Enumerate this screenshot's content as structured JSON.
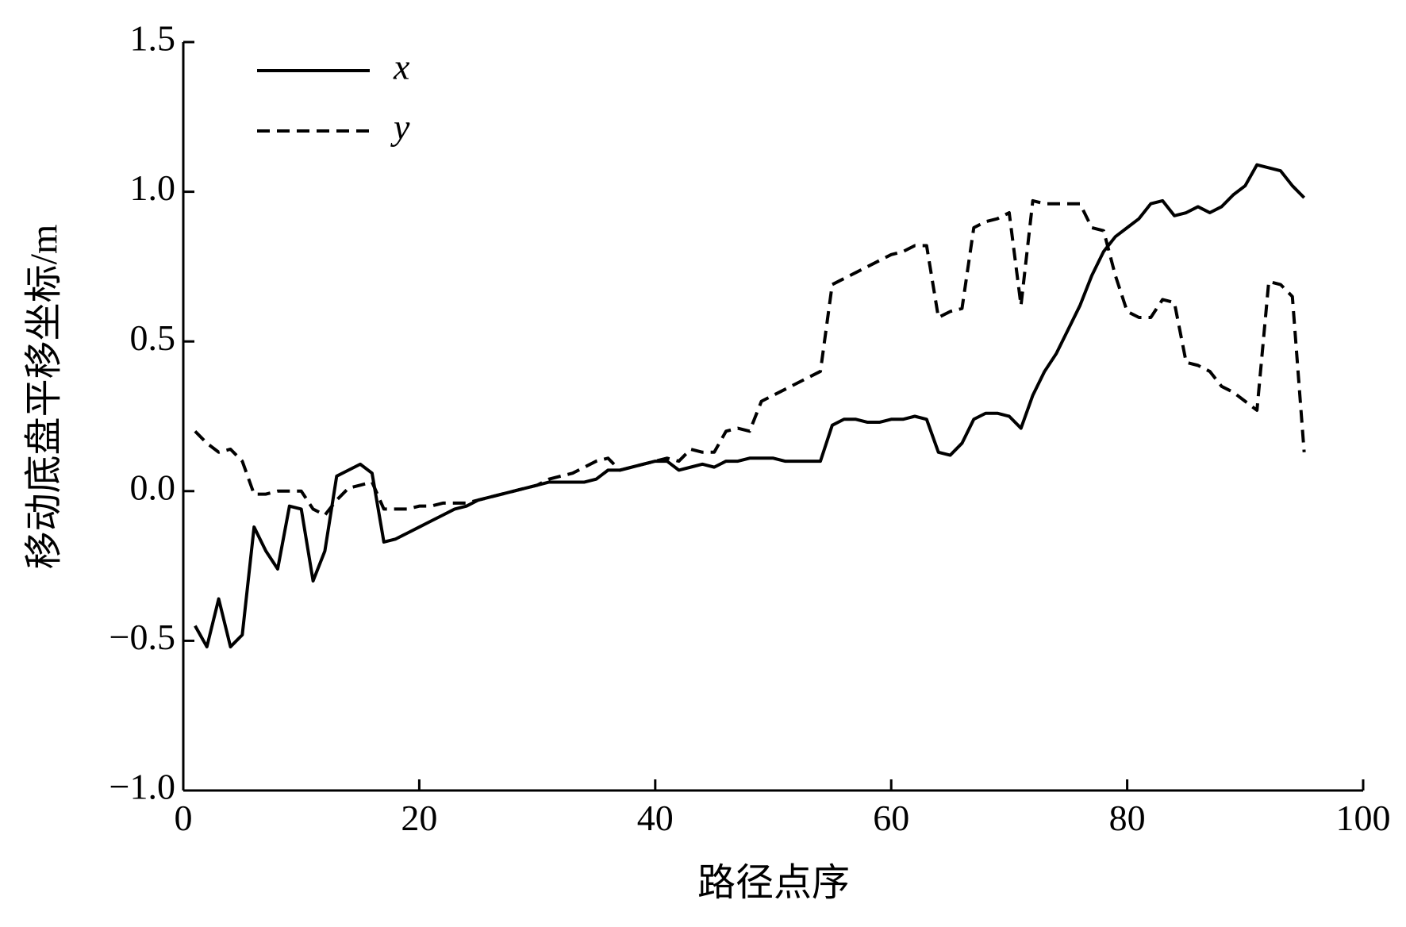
{
  "chart_data": {
    "type": "line",
    "xlabel": "路径点序",
    "ylabel": "移动底盘平移坐标/m",
    "x": [
      1,
      2,
      3,
      4,
      5,
      6,
      7,
      8,
      9,
      10,
      11,
      12,
      13,
      14,
      15,
      16,
      17,
      18,
      19,
      20,
      21,
      22,
      23,
      24,
      25,
      26,
      27,
      28,
      29,
      30,
      31,
      32,
      33,
      34,
      35,
      36,
      37,
      38,
      39,
      40,
      41,
      42,
      43,
      44,
      45,
      46,
      47,
      48,
      49,
      50,
      51,
      52,
      53,
      54,
      55,
      56,
      57,
      58,
      59,
      60,
      61,
      62,
      63,
      64,
      65,
      66,
      67,
      68,
      69,
      70,
      71,
      72,
      73,
      74,
      75,
      76,
      77,
      78,
      79,
      80,
      81,
      82,
      83,
      84,
      85,
      86,
      87,
      88,
      89,
      90,
      91,
      92,
      93,
      94,
      95
    ],
    "series": [
      {
        "name": "x",
        "color": "#000000",
        "linestyle": "solid",
        "values": [
          -0.45,
          -0.52,
          -0.36,
          -0.52,
          -0.48,
          -0.12,
          -0.2,
          -0.26,
          -0.05,
          -0.06,
          -0.3,
          -0.2,
          0.05,
          0.07,
          0.09,
          0.06,
          -0.17,
          -0.16,
          -0.14,
          -0.12,
          -0.1,
          -0.08,
          -0.06,
          -0.05,
          -0.03,
          -0.02,
          -0.01,
          0.0,
          0.01,
          0.02,
          0.03,
          0.03,
          0.03,
          0.03,
          0.04,
          0.07,
          0.07,
          0.08,
          0.09,
          0.1,
          0.1,
          0.07,
          0.08,
          0.09,
          0.08,
          0.1,
          0.1,
          0.11,
          0.11,
          0.11,
          0.1,
          0.1,
          0.1,
          0.1,
          0.22,
          0.24,
          0.24,
          0.23,
          0.23,
          0.24,
          0.24,
          0.25,
          0.24,
          0.13,
          0.12,
          0.16,
          0.24,
          0.26,
          0.26,
          0.25,
          0.21,
          0.32,
          0.4,
          0.46,
          0.54,
          0.62,
          0.72,
          0.8,
          0.85,
          0.88,
          0.91,
          0.96,
          0.97,
          0.92,
          0.93,
          0.95,
          0.93,
          0.95,
          0.99,
          1.02,
          1.09,
          1.08,
          1.07,
          1.02,
          0.98
        ]
      },
      {
        "name": "y",
        "color": "#000000",
        "linestyle": "dashed",
        "values": [
          0.2,
          0.16,
          0.13,
          0.14,
          0.1,
          -0.01,
          -0.01,
          0.0,
          0.0,
          0.0,
          -0.06,
          -0.08,
          -0.03,
          0.01,
          0.02,
          0.03,
          -0.06,
          -0.06,
          -0.06,
          -0.05,
          -0.05,
          -0.04,
          -0.04,
          -0.04,
          -0.03,
          -0.02,
          -0.01,
          0.0,
          0.01,
          0.02,
          0.04,
          0.05,
          0.06,
          0.08,
          0.1,
          0.11,
          0.07,
          0.08,
          0.09,
          0.1,
          0.11,
          0.1,
          0.14,
          0.13,
          0.13,
          0.2,
          0.21,
          0.2,
          0.3,
          0.32,
          0.34,
          0.36,
          0.38,
          0.4,
          0.69,
          0.71,
          0.73,
          0.75,
          0.77,
          0.79,
          0.8,
          0.82,
          0.82,
          0.58,
          0.6,
          0.61,
          0.88,
          0.9,
          0.91,
          0.93,
          0.62,
          0.97,
          0.96,
          0.96,
          0.96,
          0.96,
          0.88,
          0.87,
          0.72,
          0.6,
          0.58,
          0.58,
          0.64,
          0.63,
          0.43,
          0.42,
          0.4,
          0.35,
          0.33,
          0.3,
          0.27,
          0.7,
          0.69,
          0.65,
          0.13
        ]
      }
    ],
    "xlim": [
      0,
      100
    ],
    "xticks": [
      0,
      20,
      40,
      60,
      80,
      100
    ],
    "ylim": [
      -1.0,
      1.5
    ],
    "yticks": [
      {
        "value": -1.0,
        "label": "−1.0"
      },
      {
        "value": -0.5,
        "label": "−0.5"
      },
      {
        "value": 0.0,
        "label": "0.0"
      },
      {
        "value": 0.5,
        "label": "0.5"
      },
      {
        "value": 1.0,
        "label": "1.0"
      },
      {
        "value": 1.5,
        "label": "1.5"
      }
    ],
    "grid": false,
    "legend": "upper left"
  }
}
